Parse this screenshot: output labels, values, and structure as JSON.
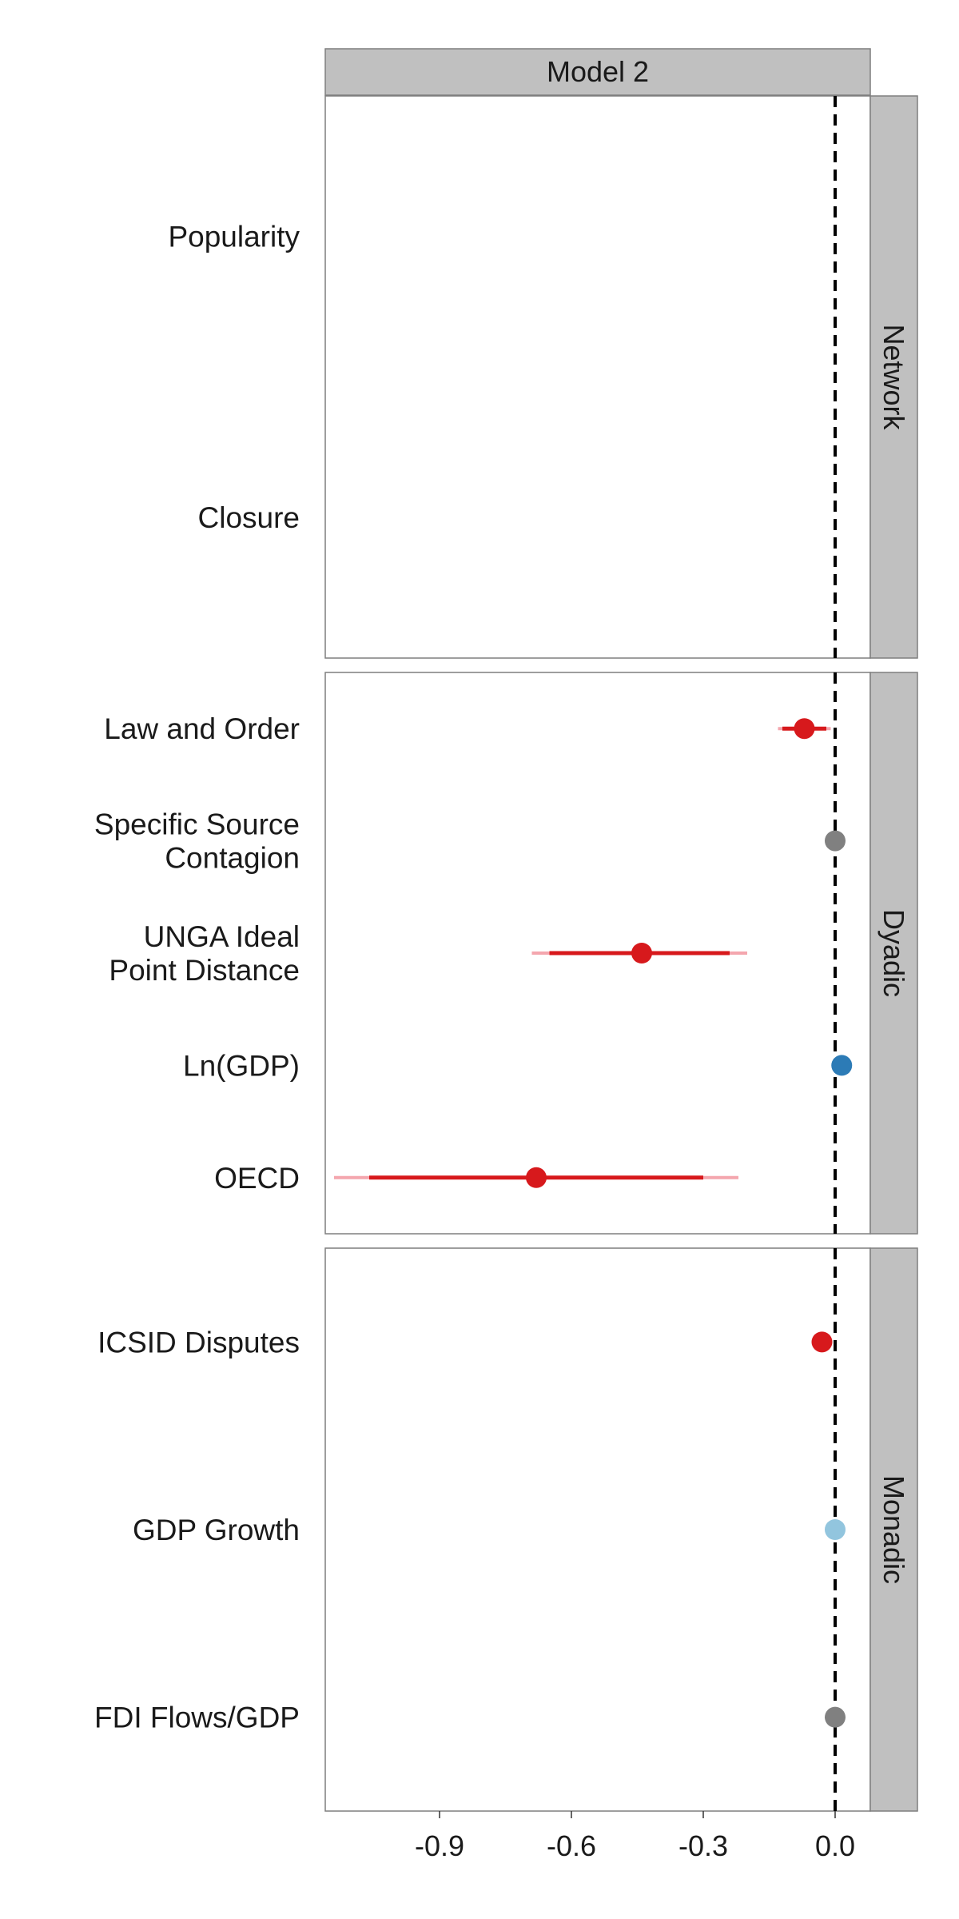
{
  "chart_data": {
    "type": "coefficient-plot",
    "column_title": "Model 2",
    "x_ticks": [
      -0.9,
      -0.6,
      -0.3,
      0.0
    ],
    "x_tick_labels": [
      "-0.9",
      "-0.6",
      "-0.3",
      "0.0"
    ],
    "xlim": [
      -1.16,
      0.08
    ],
    "reference_line": 0.0,
    "panels": [
      {
        "name": "Network",
        "rows": [
          {
            "label": "Popularity",
            "estimate": null,
            "ci_inner": null,
            "ci_outer": null,
            "color": null
          },
          {
            "label": "Closure",
            "estimate": null,
            "ci_inner": null,
            "ci_outer": null,
            "color": null
          }
        ]
      },
      {
        "name": "Dyadic",
        "rows": [
          {
            "label": "Law and Order",
            "estimate": -0.07,
            "ci_inner": [
              -0.12,
              -0.02
            ],
            "ci_outer": [
              -0.13,
              -0.01
            ],
            "color": "#d7191c"
          },
          {
            "label": "Specific Source Contagion",
            "estimate": 0.0,
            "ci_inner": null,
            "ci_outer": null,
            "color": "#808080"
          },
          {
            "label": "UNGA Ideal Point Distance",
            "estimate": -0.44,
            "ci_inner": [
              -0.65,
              -0.24
            ],
            "ci_outer": [
              -0.69,
              -0.2
            ],
            "color": "#d7191c"
          },
          {
            "label": "Ln(GDP)",
            "estimate": 0.015,
            "ci_inner": null,
            "ci_outer": null,
            "color": "#2c7bb6"
          },
          {
            "label": "OECD",
            "estimate": -0.68,
            "ci_inner": [
              -1.06,
              -0.3
            ],
            "ci_outer": [
              -1.14,
              -0.22
            ],
            "color": "#d7191c"
          }
        ]
      },
      {
        "name": "Monadic",
        "rows": [
          {
            "label": "ICSID Disputes",
            "estimate": -0.03,
            "ci_inner": null,
            "ci_outer": null,
            "color": "#d7191c"
          },
          {
            "label": "GDP Growth",
            "estimate": 0.0,
            "ci_inner": null,
            "ci_outer": null,
            "color": "#92c5de"
          },
          {
            "label": "FDI Flows/GDP",
            "estimate": 0.0,
            "ci_inner": null,
            "ci_outer": null,
            "color": "#808080"
          }
        ]
      }
    ],
    "colors": {
      "strip_fill": "#c0c0c0",
      "panel_border": "#7f7f7f",
      "reference_line": "#000000",
      "outer_ci": "#f4a6ae"
    }
  }
}
